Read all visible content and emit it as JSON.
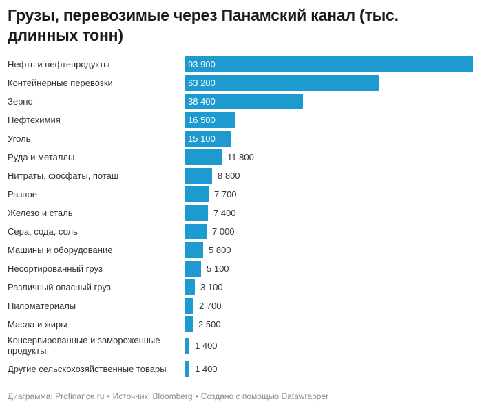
{
  "chart_data": {
    "type": "bar",
    "orientation": "horizontal",
    "title": "Грузы, перевозимые через Панамский канал (тыс. длинных тонн)",
    "categories": [
      "Нефть и нефтепродукты",
      "Контейнерные перевозки",
      "Зерно",
      "Нефтехимия",
      "Уголь",
      "Руда и металлы",
      "Нитраты, фосфаты, поташ",
      "Разное",
      "Железо и сталь",
      "Сера, сода, соль",
      "Машины и оборудование",
      "Несортированный груз",
      "Различный опасный груз",
      "Пиломатериалы",
      "Масла и жиры",
      "Консервированные и замороженные продукты",
      "Другие сельскохозяйственные товары"
    ],
    "values": [
      93900,
      63200,
      38400,
      16500,
      15100,
      11800,
      8800,
      7700,
      7400,
      7000,
      5800,
      5100,
      3100,
      2700,
      2500,
      1400,
      1400
    ],
    "value_labels": [
      "93 900",
      "63 200",
      "38 400",
      "16 500",
      "15 100",
      "11 800",
      "8 800",
      "7 700",
      "7 400",
      "7 000",
      "5 800",
      "5 100",
      "3 100",
      "2 700",
      "2 500",
      "1 400",
      "1 400"
    ],
    "xlim": [
      0,
      93900
    ],
    "color": "#1d9bd1"
  },
  "footer": {
    "diagram": "Диаграмма: Profinance.ru",
    "separator": "•",
    "source": "Источник: Bloomberg",
    "made_with": "Создано с помощью Datawrapper"
  }
}
